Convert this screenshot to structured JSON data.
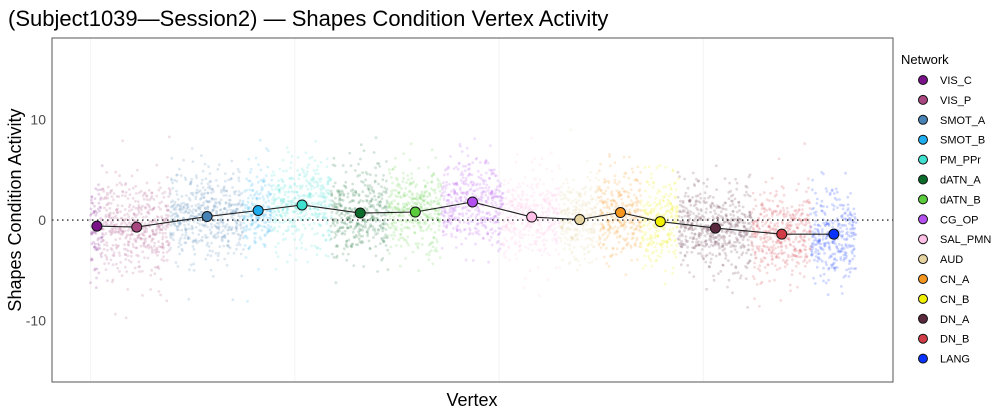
{
  "chart_data": {
    "type": "scatter",
    "title": "(Subject1039—Session2) — Shapes Condition Vertex Activity",
    "xlabel": "Vertex",
    "ylabel": "Shapes Condition Activity",
    "ylim": [
      -16.1,
      18.1
    ],
    "xlim": [
      -19,
      393
    ],
    "yticks": [
      -10,
      0,
      10
    ],
    "ytick_labels": [
      "-10",
      "0",
      "10"
    ],
    "xgrid": [
      0,
      100,
      200,
      300
    ],
    "reference_line": {
      "y": 0,
      "style": "dotted"
    },
    "legend": {
      "title": "Network",
      "position": "right"
    },
    "networks": [
      {
        "name": "VIS_C",
        "color": "#781286",
        "start": 0,
        "end": 6,
        "mean": -0.6,
        "sd": 2.4
      },
      {
        "name": "VIS_P",
        "color": "#A8467F",
        "start": 6,
        "end": 39,
        "mean": -0.7,
        "sd": 2.5
      },
      {
        "name": "SMOT_A",
        "color": "#4682B4",
        "start": 39,
        "end": 75,
        "mean": 0.35,
        "sd": 2.2
      },
      {
        "name": "SMOT_B",
        "color": "#1EAEF0",
        "start": 75,
        "end": 89,
        "mean": 0.95,
        "sd": 2.0
      },
      {
        "name": "PM_PPr",
        "color": "#40E0D0",
        "start": 89,
        "end": 118,
        "mean": 1.5,
        "sd": 2.0
      },
      {
        "name": "dATN_A",
        "color": "#0B6B2B",
        "start": 118,
        "end": 146,
        "mean": 0.7,
        "sd": 2.2
      },
      {
        "name": "dATN_B",
        "color": "#5ACC3C",
        "start": 146,
        "end": 172,
        "mean": 0.8,
        "sd": 2.0
      },
      {
        "name": "CG_OP",
        "color": "#B450F0",
        "start": 172,
        "end": 202,
        "mean": 1.8,
        "sd": 2.1
      },
      {
        "name": "SAL_PMN",
        "color": "#FFBFE6",
        "start": 202,
        "end": 230,
        "mean": 0.3,
        "sd": 2.2
      },
      {
        "name": "AUD",
        "color": "#E6D4A0",
        "start": 230,
        "end": 249,
        "mean": 0.05,
        "sd": 2.0
      },
      {
        "name": "CN_A",
        "color": "#F5961E",
        "start": 249,
        "end": 270,
        "mean": 0.75,
        "sd": 2.2
      },
      {
        "name": "CN_B",
        "color": "#F0F000",
        "start": 270,
        "end": 288,
        "mean": -0.15,
        "sd": 2.2
      },
      {
        "name": "DN_A",
        "color": "#5A283C",
        "start": 288,
        "end": 324,
        "mean": -0.8,
        "sd": 2.3
      },
      {
        "name": "DN_B",
        "color": "#D23C46",
        "start": 324,
        "end": 353,
        "mean": -1.4,
        "sd": 2.2
      },
      {
        "name": "LANG",
        "color": "#0A32FF",
        "start": 353,
        "end": 375,
        "mean": -1.4,
        "sd": 2.4
      }
    ]
  }
}
